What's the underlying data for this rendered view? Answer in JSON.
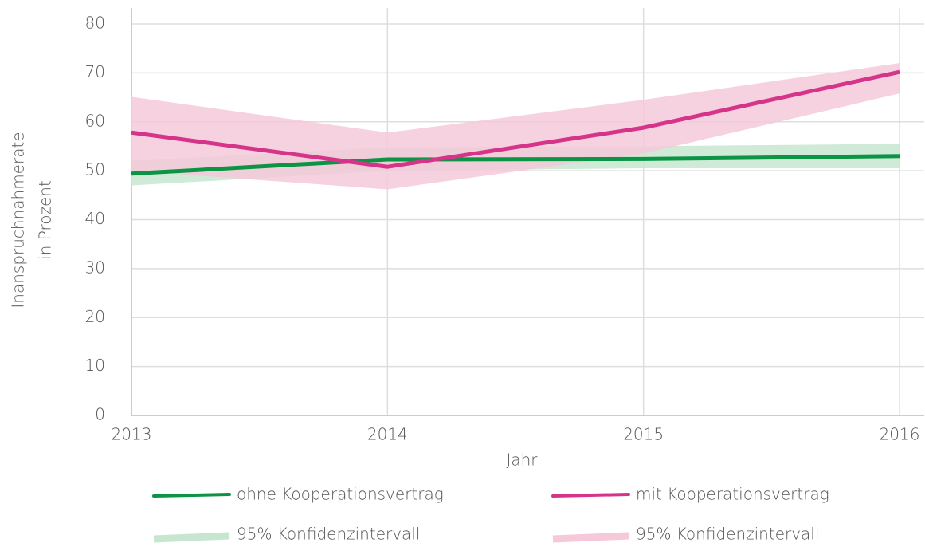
{
  "chart_data": {
    "type": "line",
    "xlabel": "Jahr",
    "ylabel": [
      "Inanspruchnahmerate",
      "in Prozent"
    ],
    "x": [
      2013,
      2014,
      2015,
      2016
    ],
    "xlim": [
      2013,
      2016
    ],
    "xticks": [
      2013,
      2014,
      2015,
      2016
    ],
    "ylim": [
      0,
      80
    ],
    "yticks": [
      0,
      10,
      20,
      30,
      40,
      50,
      60,
      70,
      80
    ],
    "grid": true,
    "series": [
      {
        "name": "ohne Kooperationsvertrag",
        "color": "#0a9444",
        "values": [
          49.4,
          52.3,
          52.4,
          53.0
        ],
        "ci": {
          "name": "95% Konfidenzintervall",
          "color": "#c7e6cf",
          "lower": [
            47.0,
            50.0,
            50.5,
            50.5
          ],
          "upper": [
            52.0,
            54.8,
            55.0,
            55.5
          ]
        }
      },
      {
        "name": "mit Kooperationsvertrag",
        "color": "#d6348a",
        "values": [
          57.8,
          50.8,
          58.8,
          70.2
        ],
        "ci": {
          "name": "95% Konfidenzintervall",
          "color": "#f5c9d9",
          "lower": [
            50.0,
            46.2,
            53.5,
            65.8
          ],
          "upper": [
            65.1,
            57.8,
            64.5,
            72.0
          ]
        }
      }
    ]
  }
}
